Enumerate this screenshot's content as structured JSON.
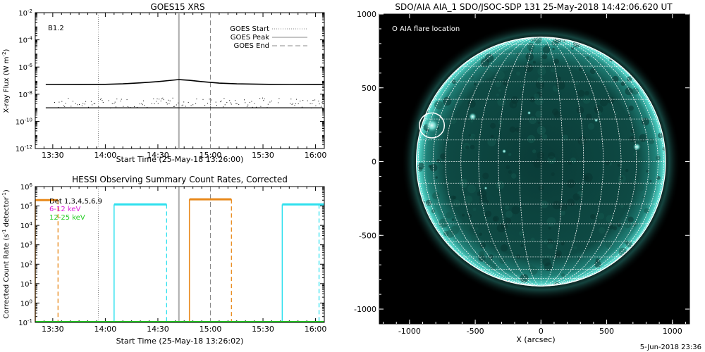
{
  "colors": {
    "goes_flux": "#000000",
    "markers_start_end": "#888888",
    "peak_line": "#aaaaaa",
    "hessi_orange": "#e8881a",
    "hessi_cyan": "#2ee0ee",
    "hessi_magenta": "#dd22dd",
    "hessi_green": "#22cc22",
    "aia_background": "#000000",
    "aia_disk": "#0d4c46",
    "aia_limb": "#5fe0d4",
    "aia_grid": "#ffffff"
  },
  "chart_data": [
    {
      "type": "line",
      "title": "GOES15 XRS",
      "xlabel": "Start Time (25-May-18 13:26:00)",
      "ylabel": "X-ray Flux (W m^-2)",
      "ylabel_parts": [
        "X-ray Flux (W m",
        "-2",
        ")"
      ],
      "xlim": [
        "13:20",
        "16:05"
      ],
      "ylim": [
        1e-12,
        0.01
      ],
      "yscale": "log",
      "x_ticks": [
        "13:30",
        "14:00",
        "14:30",
        "15:00",
        "15:30",
        "16:00"
      ],
      "y_ticks": [
        {
          "value": 0.01,
          "label": "10",
          "exp": "-2"
        },
        {
          "value": 0.0001,
          "label": "10",
          "exp": "-4"
        },
        {
          "value": 1e-06,
          "label": "10",
          "exp": "-6"
        },
        {
          "value": 1e-08,
          "label": "10",
          "exp": "-8"
        },
        {
          "value": 1e-10,
          "label": "10",
          "exp": "-10"
        },
        {
          "value": 1e-12,
          "label": "10",
          "exp": "-12"
        }
      ],
      "annotation": "B1.2",
      "legend_position": "top-right",
      "legend": [
        "GOES Start",
        "GOES Peak",
        "GOES End"
      ],
      "markers": {
        "start": "13:56",
        "peak": "14:42",
        "end": "15:00"
      },
      "series": [
        {
          "channel": "long",
          "x": [
            "13:26",
            "13:45",
            "14:00",
            "14:10",
            "14:20",
            "14:30",
            "14:36",
            "14:42",
            "14:48",
            "14:55",
            "15:05",
            "15:15",
            "15:30",
            "15:45",
            "16:00",
            "16:04"
          ],
          "values": [
            5.2e-08,
            5.1e-08,
            5.3e-08,
            5.8e-08,
            6.8e-08,
            8.5e-08,
            1e-07,
            1.2e-07,
            1.05e-07,
            8.5e-08,
            6.5e-08,
            5.8e-08,
            5.4e-08,
            5.2e-08,
            5.1e-08,
            5.1e-08
          ]
        },
        {
          "channel": "short",
          "x": [
            "13:26",
            "16:04"
          ],
          "values": [
            1e-09,
            1e-09
          ]
        }
      ]
    },
    {
      "type": "line",
      "title": "HESSI Observing Summary Count Rates, Corrected",
      "xlabel": "Start Time (25-May-18 13:26:02)",
      "ylabel": "Corrected Count Rate (s^-1 detector^-1)",
      "ylabel_parts": [
        "Corrected Count Rate (s",
        "-1",
        " detector",
        "-1",
        ")"
      ],
      "xlim": [
        "13:20",
        "16:05"
      ],
      "ylim": [
        0.1,
        1000000.0
      ],
      "yscale": "log",
      "x_ticks": [
        "13:30",
        "14:00",
        "14:30",
        "15:00",
        "15:30",
        "16:00"
      ],
      "y_ticks": [
        {
          "value": 1000000.0,
          "label": "10",
          "exp": "6"
        },
        {
          "value": 100000.0,
          "label": "10",
          "exp": "5"
        },
        {
          "value": 10000.0,
          "label": "10",
          "exp": "4"
        },
        {
          "value": 1000.0,
          "label": "10",
          "exp": "3"
        },
        {
          "value": 100.0,
          "label": "10",
          "exp": "2"
        },
        {
          "value": 10.0,
          "label": "10",
          "exp": "1"
        },
        {
          "value": 1.0,
          "label": "10",
          "exp": "0"
        },
        {
          "value": 0.1,
          "label": "10",
          "exp": "-1"
        }
      ],
      "legend": [
        {
          "label": "Det 1,3,4,5,6,9",
          "color": "#000000"
        },
        {
          "label": "6-12 keV",
          "color": "#dd22dd"
        },
        {
          "label": "12-25 keV",
          "color": "#22cc22"
        }
      ],
      "markers": {
        "start": "13:56",
        "peak": "14:42",
        "end": "15:00"
      },
      "segments": [
        {
          "color": "#e8881a",
          "x": [
            "13:20",
            "13:33"
          ],
          "value": 200000.0,
          "dashed_edges": [
            "13:33"
          ]
        },
        {
          "color": "#2ee0ee",
          "x": [
            "14:05",
            "14:35"
          ],
          "value": 120000.0,
          "dashed_edges": [
            "14:35"
          ]
        },
        {
          "color": "#e8881a",
          "x": [
            "14:48",
            "15:12"
          ],
          "value": 220000.0,
          "dashed_edges": [
            "15:12"
          ]
        },
        {
          "color": "#2ee0ee",
          "x": [
            "15:41",
            "16:05"
          ],
          "value": 120000.0,
          "dashed_edges": [
            "16:02"
          ]
        }
      ],
      "baseline": {
        "color": "#22cc22",
        "value": 0.1
      }
    },
    {
      "type": "scatter",
      "title": "SDO/AIA AIA_1 SDO/JSOC-SDP 131 25-May-2018 14:42:06.620 UT",
      "xlabel": "X (arcsec)",
      "ylabel": "",
      "xlim": [
        -1230,
        1130
      ],
      "ylim": [
        -1100,
        1000
      ],
      "x_ticks": [
        -1000,
        -500,
        0,
        500,
        1000
      ],
      "y_ticks": [
        1000,
        500,
        0,
        -500,
        -1000
      ],
      "legend": "O AIA flare location",
      "legend_position": "top-left",
      "solar_radius": 948,
      "flare": {
        "x": -830,
        "y": 245,
        "r": 95
      },
      "bright_regions": [
        {
          "x": -830,
          "y": 245,
          "r": 55
        },
        {
          "x": -520,
          "y": 305,
          "r": 30
        },
        {
          "x": 730,
          "y": 100,
          "r": 30
        },
        {
          "x": -90,
          "y": 330,
          "r": 14
        },
        {
          "x": -280,
          "y": 70,
          "r": 16
        },
        {
          "x": 420,
          "y": 280,
          "r": 14
        },
        {
          "x": -420,
          "y": -180,
          "r": 12
        }
      ]
    }
  ],
  "footer_date": "5-Jun-2018 23:36"
}
